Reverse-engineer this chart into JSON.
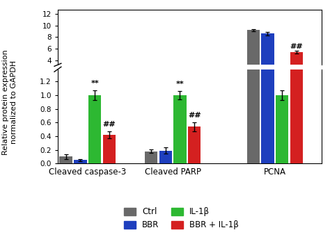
{
  "groups": [
    "Cleaved caspase-3",
    "Cleaved PARP",
    "PCNA"
  ],
  "series": [
    "Ctrl",
    "BBR",
    "IL-1β",
    "BBR + IL-1β"
  ],
  "colors": [
    "#696969",
    "#1e3fbe",
    "#2db832",
    "#d42020"
  ],
  "bar_values": [
    [
      0.1,
      0.05,
      1.0,
      0.42
    ],
    [
      0.18,
      0.19,
      1.0,
      0.54
    ],
    [
      9.2,
      8.6,
      1.0,
      5.4
    ]
  ],
  "bar_errors": [
    [
      0.04,
      0.015,
      0.07,
      0.055
    ],
    [
      0.025,
      0.045,
      0.065,
      0.065
    ],
    [
      0.22,
      0.28,
      0.07,
      0.22
    ]
  ],
  "ylabel": "Relative protein expression\nnormalized to GAPDH",
  "yticks_lower": [
    0.0,
    0.2,
    0.4,
    0.6,
    0.8,
    1.0,
    1.2
  ],
  "yticks_upper": [
    4,
    6,
    8,
    10,
    12
  ],
  "lower_ylim": [
    0.0,
    1.38
  ],
  "upper_ylim": [
    3.2,
    12.8
  ],
  "lower_height_ratio": 0.63,
  "upper_height_ratio": 0.37,
  "bar_width": 0.17,
  "background_color": "#ffffff",
  "legend_labels": [
    "Ctrl",
    "BBR",
    "IL-1β",
    "BBR + IL-1β"
  ],
  "group_centers": [
    0.35,
    1.35,
    2.55
  ],
  "xlim": [
    0.0,
    3.1
  ]
}
